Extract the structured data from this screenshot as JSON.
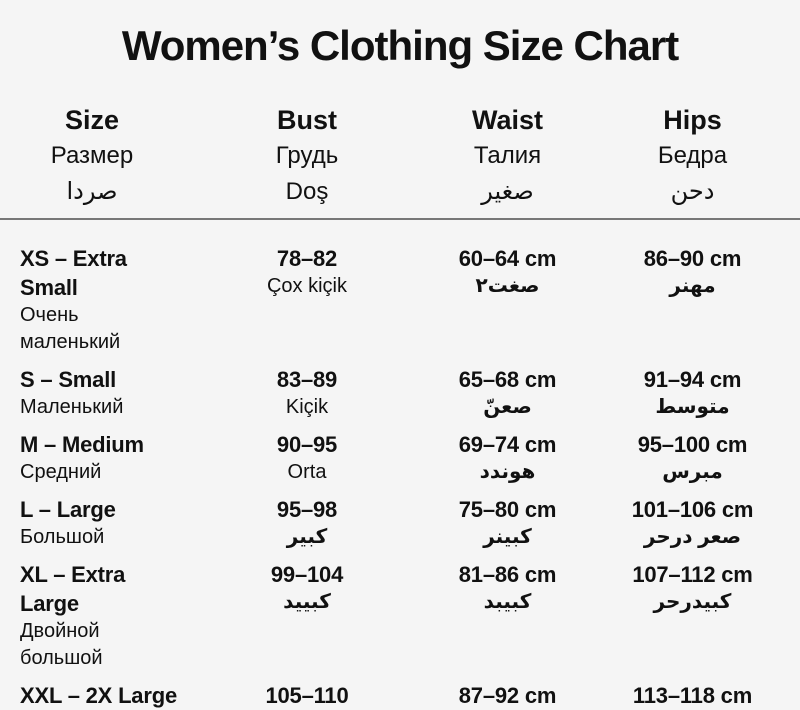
{
  "page": {
    "background_color": "#f5f5f5",
    "text_color": "#111111",
    "divider_color": "#777777"
  },
  "title": "Women’s Clothing Size Chart",
  "chart_data": {
    "type": "table",
    "title": "Women’s Clothing Size Chart",
    "columns": [
      {
        "en": "Size",
        "ru": "Размер",
        "ar": "صردا"
      },
      {
        "en": "Bust",
        "ru": "Грудь",
        "ar": "Doş"
      },
      {
        "en": "Waist",
        "ru": "Талия",
        "ar": "صغير"
      },
      {
        "en": "Hips",
        "ru": "Бедра",
        "ar": "دحن"
      }
    ],
    "rows": [
      {
        "size": "XS – Extra Small",
        "size_sub": "Очень маленький",
        "bust": "78–82",
        "bust_sub": "Çox kiçik",
        "waist": "60–64 cm",
        "waist_sub": "صغت٢",
        "hips": "86–90 cm",
        "hips_sub": "مهنر"
      },
      {
        "size": "S – Small",
        "size_sub": "Маленький",
        "bust": "83–89",
        "bust_sub": "Kiçik",
        "waist": "65–68 cm",
        "waist_sub": "صعنّ",
        "hips": "91–94 cm",
        "hips_sub": "متوسط"
      },
      {
        "size": "M – Medium",
        "size_sub": "Средний",
        "bust": "90–95",
        "bust_sub": "Orta",
        "waist": "69–74 cm",
        "waist_sub": "هوندد",
        "hips": "95–100 cm",
        "hips_sub": "مبرس"
      },
      {
        "size": "L – Large",
        "size_sub": "Большой",
        "bust": "95–98",
        "bust_sub": "كبير",
        "waist": "75–80 cm",
        "waist_sub": "كبينر",
        "hips": "101–106 cm",
        "hips_sub": "صعر درحر"
      },
      {
        "size": "XL – Extra Large",
        "size_sub": "Двойной большой",
        "bust": "99–104",
        "bust_sub": "كبييد",
        "waist": "81–86 cm",
        "waist_sub": "كبيبد",
        "hips": "107–112 cm",
        "hips_sub": "كبيدرحر"
      },
      {
        "size": "XXL – 2X Large",
        "bust": "105–110",
        "waist": "87–92 cm",
        "hips": "113–118 cm"
      }
    ]
  }
}
